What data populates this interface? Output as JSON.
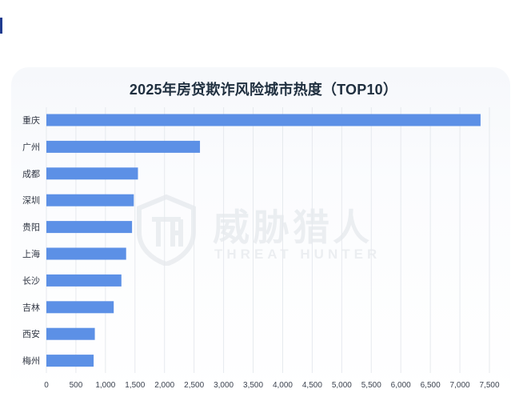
{
  "watermark": {
    "cn": "威胁猎人",
    "en": "THREAT HUNTER",
    "logo_letters": "TH"
  },
  "chart_data": {
    "type": "bar",
    "orientation": "horizontal",
    "title": "2025年房贷欺诈风险城市热度（TOP10）",
    "categories": [
      "重庆",
      "广州",
      "成都",
      "深圳",
      "贵阳",
      "上海",
      "长沙",
      "吉林",
      "西安",
      "梅州"
    ],
    "values": [
      7350,
      2600,
      1550,
      1480,
      1450,
      1350,
      1270,
      1140,
      820,
      800
    ],
    "xlim": [
      0,
      7500
    ],
    "xticks": [
      0,
      500,
      1000,
      1500,
      2000,
      2500,
      3000,
      3500,
      4000,
      4500,
      5000,
      5500,
      6000,
      6500,
      7000,
      7500
    ],
    "xtick_labels": [
      "0",
      "500",
      "1,000",
      "1,500",
      "2,000",
      "2,500",
      "3,000",
      "3,500",
      "4,000",
      "4,500",
      "5,000",
      "5,500",
      "6,000",
      "6,500",
      "7,000",
      "7,500"
    ],
    "grid": "vertical",
    "legend": "none",
    "colors": {
      "bar": "#5c90e6",
      "grid": "#e6e9ee",
      "title": "#1f2f3f",
      "accent": "#1f3b8f"
    }
  }
}
